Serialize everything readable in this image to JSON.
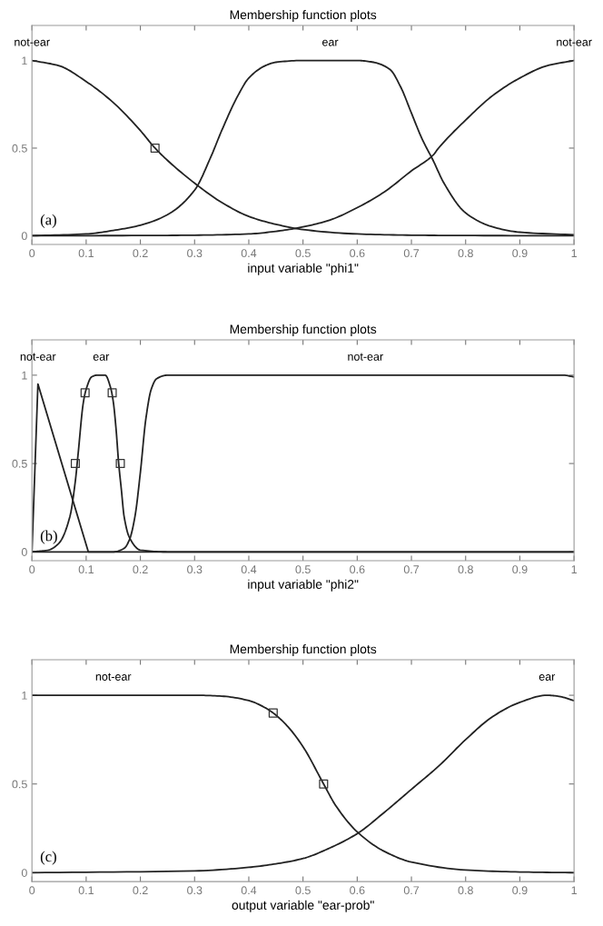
{
  "chart_data": [
    {
      "type": "line",
      "title": "Membership function plots",
      "xlabel": "input variable \"phi1\"",
      "xlim": [
        0,
        1
      ],
      "ylim": [
        -0.05,
        1.2
      ],
      "xticks": [
        0,
        0.1,
        0.2,
        0.3,
        0.4,
        0.5,
        0.6,
        0.7,
        0.8,
        0.9,
        1
      ],
      "yticks": [
        0,
        0.5,
        1
      ],
      "grid": false,
      "legend": false,
      "annotations": [
        "(a)"
      ],
      "series": [
        {
          "name": "not-ear",
          "color": "#222222",
          "marker": "none",
          "x": [
            0,
            0.05,
            0.1,
            0.15,
            0.2,
            0.227,
            0.25,
            0.3,
            0.35,
            0.4,
            0.45,
            0.5,
            0.6,
            0.7,
            0.8,
            1
          ],
          "values": [
            1,
            0.97,
            0.88,
            0.76,
            0.6,
            0.5,
            0.43,
            0.3,
            0.19,
            0.11,
            0.065,
            0.035,
            0.01,
            0.003,
            0.001,
            0
          ]
        },
        {
          "name": "ear",
          "color": "#222222",
          "marker": "none",
          "x": [
            0,
            0.1,
            0.15,
            0.2,
            0.25,
            0.3,
            0.33,
            0.35,
            0.38,
            0.4,
            0.43,
            0.45,
            0.5,
            0.6,
            0.63,
            0.66,
            0.68,
            0.7,
            0.72,
            0.74,
            0.76,
            0.8,
            0.85,
            0.9,
            1
          ],
          "values": [
            0,
            0.01,
            0.03,
            0.06,
            0.12,
            0.26,
            0.45,
            0.6,
            0.8,
            0.9,
            0.97,
            0.99,
            1,
            1,
            0.99,
            0.95,
            0.85,
            0.7,
            0.55,
            0.43,
            0.3,
            0.13,
            0.05,
            0.02,
            0.005
          ]
        },
        {
          "name": "not-ear",
          "color": "#222222",
          "marker": "none",
          "x": [
            0,
            0.2,
            0.3,
            0.4,
            0.45,
            0.5,
            0.55,
            0.6,
            0.65,
            0.7,
            0.74,
            0.75,
            0.8,
            0.85,
            0.9,
            0.95,
            1
          ],
          "values": [
            0,
            0.001,
            0.003,
            0.01,
            0.025,
            0.05,
            0.09,
            0.16,
            0.25,
            0.37,
            0.46,
            0.5,
            0.66,
            0.8,
            0.9,
            0.97,
            1
          ]
        },
        {
          "type": "scatter",
          "color": "#333333",
          "marker": "square",
          "x": [
            0.227
          ],
          "values": [
            0.5
          ]
        }
      ]
    },
    {
      "type": "line",
      "title": "Membership function plots",
      "xlabel": "input variable \"phi2\"",
      "xlim": [
        0,
        1
      ],
      "ylim": [
        -0.05,
        1.2
      ],
      "xticks": [
        0,
        0.1,
        0.2,
        0.3,
        0.4,
        0.5,
        0.6,
        0.7,
        0.8,
        0.9,
        1
      ],
      "yticks": [
        0,
        0.5,
        1
      ],
      "grid": false,
      "legend": false,
      "annotations": [
        "(b)"
      ],
      "series": [
        {
          "name": "not-ear",
          "color": "#222222",
          "marker": "none",
          "x": [
            0,
            0.011,
            0.104,
            1
          ],
          "values": [
            0,
            0.95,
            0,
            0
          ]
        },
        {
          "name": "ear",
          "color": "#222222",
          "marker": "none",
          "x": [
            0,
            0.03,
            0.05,
            0.07,
            0.08,
            0.085,
            0.095,
            0.1,
            0.11,
            0.12,
            0.135,
            0.145,
            0.15,
            0.155,
            0.16,
            0.165,
            0.17,
            0.18,
            0.2,
            0.25,
            1
          ],
          "values": [
            0,
            0.01,
            0.05,
            0.2,
            0.4,
            0.55,
            0.85,
            0.92,
            0.99,
            1,
            1,
            0.93,
            0.85,
            0.7,
            0.5,
            0.35,
            0.2,
            0.08,
            0.01,
            0,
            0
          ]
        },
        {
          "name": "not-ear",
          "color": "#222222",
          "marker": "none",
          "x": [
            0,
            0.15,
            0.17,
            0.18,
            0.19,
            0.2,
            0.21,
            0.22,
            0.23,
            0.25,
            0.98,
            1
          ],
          "values": [
            0,
            0,
            0.02,
            0.07,
            0.2,
            0.45,
            0.75,
            0.92,
            0.98,
            1,
            1,
            0.99
          ]
        },
        {
          "type": "scatter",
          "color": "#333333",
          "marker": "square",
          "x": [
            0.098,
            0.08,
            0.148,
            0.163
          ],
          "values": [
            0.9,
            0.5,
            0.9,
            0.5
          ]
        }
      ]
    },
    {
      "type": "line",
      "title": "Membership function plots",
      "xlabel": "output variable \"ear-prob\"",
      "xlim": [
        0,
        1
      ],
      "ylim": [
        -0.05,
        1.2
      ],
      "xticks": [
        0,
        0.1,
        0.2,
        0.3,
        0.4,
        0.5,
        0.6,
        0.7,
        0.8,
        0.9,
        1
      ],
      "yticks": [
        0,
        0.5,
        1
      ],
      "grid": false,
      "legend": false,
      "annotations": [
        "(c)"
      ],
      "series": [
        {
          "name": "not-ear",
          "color": "#222222",
          "marker": "none",
          "x": [
            0,
            0.3,
            0.35,
            0.4,
            0.43,
            0.445,
            0.47,
            0.5,
            0.538,
            0.56,
            0.6,
            0.65,
            0.7,
            0.8,
            0.9,
            1
          ],
          "values": [
            1,
            1,
            0.995,
            0.97,
            0.93,
            0.9,
            0.83,
            0.71,
            0.5,
            0.38,
            0.23,
            0.12,
            0.06,
            0.015,
            0.004,
            0
          ]
        },
        {
          "name": "ear",
          "color": "#222222",
          "marker": "none",
          "x": [
            0,
            0.3,
            0.4,
            0.45,
            0.5,
            0.55,
            0.6,
            0.65,
            0.7,
            0.75,
            0.8,
            0.85,
            0.9,
            0.95,
            0.97,
            1
          ],
          "values": [
            0,
            0.01,
            0.03,
            0.05,
            0.08,
            0.14,
            0.22,
            0.34,
            0.47,
            0.6,
            0.75,
            0.88,
            0.96,
            1,
            0.995,
            0.97
          ]
        },
        {
          "type": "scatter",
          "color": "#333333",
          "marker": "square",
          "x": [
            0.445,
            0.538
          ],
          "values": [
            0.9,
            0.5
          ]
        }
      ]
    }
  ]
}
